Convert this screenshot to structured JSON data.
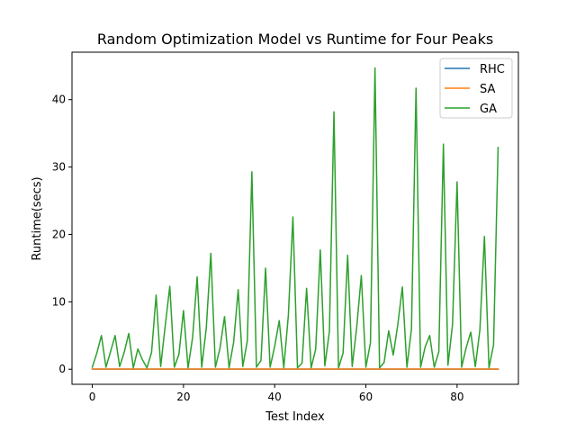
{
  "chart_data": {
    "type": "line",
    "title": "Random Optimization Model vs Runtime for Four Peaks",
    "xlabel": "Test Index",
    "ylabel": "Runtime(secs)",
    "xlim": [
      -4.45,
      93.45
    ],
    "ylim": [
      -2.24,
      47.04
    ],
    "xticks": [
      0,
      20,
      40,
      60,
      80
    ],
    "yticks": [
      0,
      10,
      20,
      30,
      40
    ],
    "grid": false,
    "legend_position": "top-right",
    "x": [
      0,
      1,
      2,
      3,
      4,
      5,
      6,
      7,
      8,
      9,
      10,
      11,
      12,
      13,
      14,
      15,
      16,
      17,
      18,
      19,
      20,
      21,
      22,
      23,
      24,
      25,
      26,
      27,
      28,
      29,
      30,
      31,
      32,
      33,
      34,
      35,
      36,
      37,
      38,
      39,
      40,
      41,
      42,
      43,
      44,
      45,
      46,
      47,
      48,
      49,
      50,
      51,
      52,
      53,
      54,
      55,
      56,
      57,
      58,
      59,
      60,
      61,
      62,
      63,
      64,
      65,
      66,
      67,
      68,
      69,
      70,
      71,
      72,
      73,
      74,
      75,
      76,
      77,
      78,
      79,
      80,
      81,
      82,
      83,
      84,
      85,
      86,
      87,
      88,
      89
    ],
    "series": [
      {
        "name": "RHC",
        "color": "#1f77b4",
        "values": [
          0.02,
          0.02,
          0.02,
          0.02,
          0.02,
          0.02,
          0.02,
          0.02,
          0.02,
          0.02,
          0.02,
          0.02,
          0.02,
          0.02,
          0.02,
          0.02,
          0.02,
          0.02,
          0.02,
          0.02,
          0.02,
          0.02,
          0.02,
          0.02,
          0.02,
          0.02,
          0.02,
          0.02,
          0.02,
          0.02,
          0.02,
          0.02,
          0.02,
          0.02,
          0.02,
          0.02,
          0.02,
          0.02,
          0.02,
          0.02,
          0.02,
          0.02,
          0.02,
          0.02,
          0.02,
          0.02,
          0.02,
          0.02,
          0.02,
          0.02,
          0.02,
          0.02,
          0.02,
          0.02,
          0.02,
          0.02,
          0.02,
          0.02,
          0.02,
          0.02,
          0.02,
          0.02,
          0.02,
          0.02,
          0.02,
          0.02,
          0.02,
          0.02,
          0.02,
          0.02,
          0.02,
          0.02,
          0.02,
          0.02,
          0.02,
          0.02,
          0.02,
          0.02,
          0.02,
          0.02,
          0.02,
          0.02,
          0.02,
          0.02,
          0.02,
          0.02,
          0.02,
          0.02,
          0.02,
          0.02
        ]
      },
      {
        "name": "SA",
        "color": "#ff7f0e",
        "values": [
          0.03,
          0.03,
          0.03,
          0.03,
          0.03,
          0.03,
          0.03,
          0.03,
          0.03,
          0.03,
          0.03,
          0.03,
          0.03,
          0.03,
          0.03,
          0.03,
          0.03,
          0.03,
          0.03,
          0.03,
          0.03,
          0.03,
          0.03,
          0.03,
          0.03,
          0.03,
          0.03,
          0.03,
          0.03,
          0.03,
          0.03,
          0.03,
          0.03,
          0.03,
          0.03,
          0.03,
          0.03,
          0.03,
          0.03,
          0.03,
          0.03,
          0.03,
          0.03,
          0.03,
          0.03,
          0.03,
          0.03,
          0.03,
          0.03,
          0.03,
          0.03,
          0.03,
          0.03,
          0.03,
          0.03,
          0.03,
          0.03,
          0.03,
          0.03,
          0.03,
          0.03,
          0.03,
          0.03,
          0.03,
          0.03,
          0.03,
          0.03,
          0.03,
          0.03,
          0.03,
          0.03,
          0.03,
          0.03,
          0.03,
          0.03,
          0.03,
          0.03,
          0.03,
          0.03,
          0.03,
          0.03,
          0.03,
          0.03,
          0.03,
          0.03,
          0.03,
          0.03,
          0.03,
          0.03,
          0.03
        ]
      },
      {
        "name": "GA",
        "color": "#2ca02c",
        "values": [
          0.3,
          2.4,
          5.0,
          0.3,
          2.6,
          5.0,
          0.4,
          2.5,
          5.3,
          0.2,
          3.0,
          1.4,
          0.2,
          2.5,
          11.0,
          0.4,
          6.5,
          12.3,
          0.3,
          2.2,
          8.7,
          0.2,
          4.7,
          13.7,
          0.3,
          6.1,
          17.2,
          0.3,
          3.1,
          7.8,
          0.2,
          4.0,
          11.8,
          0.4,
          4.2,
          29.3,
          0.3,
          1.3,
          15.0,
          0.3,
          3.4,
          7.2,
          0.2,
          8.0,
          22.6,
          0.2,
          0.9,
          12.0,
          0.2,
          3.0,
          17.7,
          0.5,
          5.6,
          38.2,
          0.2,
          2.4,
          16.9,
          0.4,
          6.3,
          13.9,
          0.3,
          3.9,
          44.7,
          0.2,
          1.0,
          5.7,
          2.1,
          6.6,
          12.2,
          0.3,
          6.0,
          41.7,
          0.3,
          3.3,
          5.0,
          0.3,
          2.6,
          33.4,
          0.6,
          6.6,
          27.8,
          0.3,
          3.2,
          5.5,
          0.4,
          5.8,
          19.7,
          0.2,
          3.6,
          32.9
        ]
      }
    ]
  }
}
